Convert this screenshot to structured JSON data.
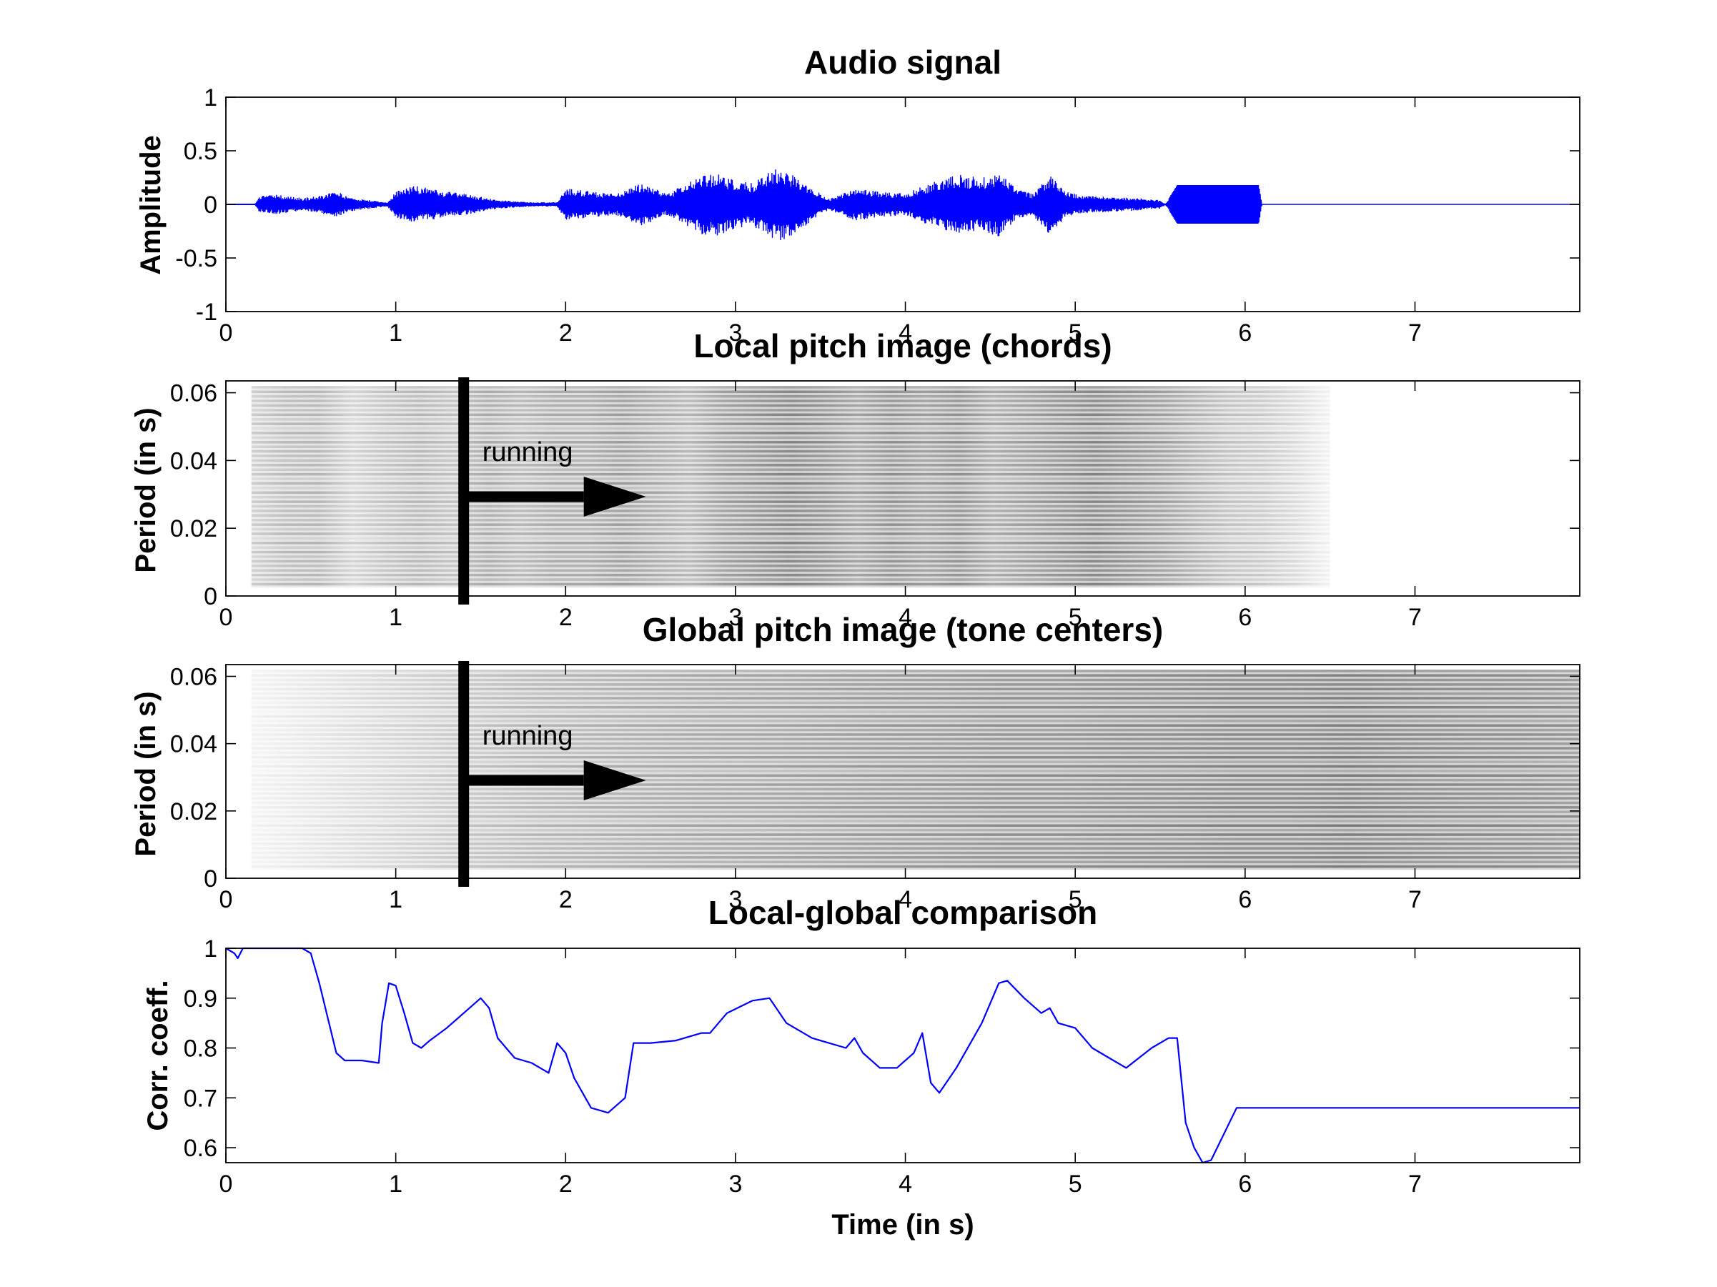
{
  "chart_data": [
    {
      "type": "line",
      "title": "Audio signal",
      "xlabel": "",
      "ylabel": "Amplitude",
      "xlim": [
        0,
        7.97
      ],
      "ylim": [
        -1,
        1
      ],
      "xticks": [
        "0",
        "1",
        "2",
        "3",
        "4",
        "5",
        "6",
        "7"
      ],
      "yticks": [
        "-1",
        "-0.5",
        "0",
        "0.5",
        "1"
      ],
      "color": "#0000ff",
      "series": [
        {
          "x": [
            0,
            0.17,
            0.2,
            0.3,
            0.45,
            0.55,
            0.65,
            0.7,
            0.8,
            0.95,
            1.0,
            1.1,
            1.2,
            1.3,
            1.4,
            1.5,
            1.6,
            1.7,
            1.8,
            1.95,
            2.0,
            2.15,
            2.3,
            2.45,
            2.6,
            2.8,
            2.9,
            3.0,
            3.1,
            3.2,
            3.25,
            3.35,
            3.45,
            3.55,
            3.7,
            3.85,
            4.0,
            4.15,
            4.3,
            4.45,
            4.55,
            4.65,
            4.75,
            4.85,
            4.95,
            5.05,
            5.2,
            5.35,
            5.5,
            5.53,
            5.6,
            6.08,
            6.1,
            7.97
          ],
          "envelope": [
            0,
            0,
            0.08,
            0.09,
            0.06,
            0.08,
            0.13,
            0.08,
            0.05,
            0.02,
            0.12,
            0.18,
            0.15,
            0.12,
            0.1,
            0.07,
            0.04,
            0.03,
            0.02,
            0.02,
            0.15,
            0.12,
            0.1,
            0.2,
            0.1,
            0.28,
            0.3,
            0.22,
            0.2,
            0.3,
            0.35,
            0.28,
            0.15,
            0.05,
            0.15,
            0.12,
            0.1,
            0.2,
            0.28,
            0.25,
            0.3,
            0.15,
            0.1,
            0.28,
            0.12,
            0.08,
            0.07,
            0.06,
            0.04,
            0,
            0.18,
            0.18,
            0,
            0
          ]
        }
      ]
    },
    {
      "type": "heatmap",
      "title": "Local pitch image (chords)",
      "xlabel": "",
      "ylabel": "Period (in s)",
      "xlim": [
        0,
        7.97
      ],
      "ylim": [
        0,
        0.0635
      ],
      "xticks": [
        "0",
        "1",
        "2",
        "3",
        "4",
        "5",
        "6",
        "7"
      ],
      "yticks": [
        "0",
        "0.02",
        "0.04",
        "0.06"
      ],
      "time_extent": [
        0.15,
        6.5
      ],
      "period_extent": [
        0.0025,
        0.062
      ],
      "intensity": [
        0.2,
        0.28,
        0.3,
        0.18,
        0.25,
        0.3,
        0.25,
        0.35,
        0.3,
        0.35,
        0.35,
        0.4,
        0.35,
        0.3,
        0.4,
        0.45,
        0.5,
        0.45,
        0.38,
        0.45,
        0.4,
        0.45,
        0.35,
        0.4,
        0.45,
        0.5,
        0.45,
        0.4,
        0.32,
        0.25,
        0.22,
        0.15,
        0.05
      ],
      "annotation": "running",
      "marker_time": 1.4
    },
    {
      "type": "heatmap",
      "title": "Global pitch image (tone centers)",
      "xlabel": "",
      "ylabel": "Period (in s)",
      "xlim": [
        0,
        7.97
      ],
      "ylim": [
        0,
        0.0635
      ],
      "xticks": [
        "0",
        "1",
        "2",
        "3",
        "4",
        "5",
        "6",
        "7"
      ],
      "yticks": [
        "0",
        "0.02",
        "0.04",
        "0.06"
      ],
      "time_extent": [
        0.15,
        7.97
      ],
      "period_extent": [
        0.0025,
        0.062
      ],
      "intensity": [
        0.05,
        0.1,
        0.15,
        0.2,
        0.25,
        0.3,
        0.32,
        0.35,
        0.37,
        0.38,
        0.4,
        0.42,
        0.43,
        0.45,
        0.45,
        0.47,
        0.48,
        0.5,
        0.5,
        0.52,
        0.5,
        0.48,
        0.47,
        0.45
      ],
      "annotation": "running",
      "marker_time": 1.4
    },
    {
      "type": "line",
      "title": "Local-global comparison",
      "xlabel": "Time (in s)",
      "ylabel": "Corr. coeff.",
      "xlim": [
        0,
        7.97
      ],
      "ylim": [
        0.57,
        1
      ],
      "xticks": [
        "0",
        "1",
        "2",
        "3",
        "4",
        "5",
        "6",
        "7"
      ],
      "yticks": [
        "0.6",
        "0.7",
        "0.8",
        "0.9",
        "1"
      ],
      "color": "#0000ff",
      "series": [
        {
          "x": [
            0,
            0.05,
            0.07,
            0.1,
            0.45,
            0.5,
            0.55,
            0.6,
            0.65,
            0.7,
            0.8,
            0.9,
            0.92,
            0.96,
            1.0,
            1.05,
            1.1,
            1.15,
            1.2,
            1.3,
            1.4,
            1.5,
            1.55,
            1.6,
            1.7,
            1.8,
            1.9,
            1.95,
            2.0,
            2.05,
            2.15,
            2.25,
            2.35,
            2.4,
            2.5,
            2.65,
            2.8,
            2.85,
            2.95,
            3.1,
            3.2,
            3.3,
            3.45,
            3.55,
            3.65,
            3.7,
            3.75,
            3.85,
            3.95,
            4.05,
            4.1,
            4.15,
            4.2,
            4.3,
            4.45,
            4.55,
            4.6,
            4.7,
            4.8,
            4.85,
            4.9,
            5.0,
            5.1,
            5.2,
            5.3,
            5.45,
            5.55,
            5.6,
            5.65,
            5.7,
            5.75,
            5.8,
            5.95,
            7.97
          ],
          "y": [
            1.0,
            0.99,
            0.98,
            1.0,
            1.0,
            0.99,
            0.93,
            0.86,
            0.79,
            0.775,
            0.775,
            0.77,
            0.85,
            0.93,
            0.925,
            0.87,
            0.81,
            0.8,
            0.815,
            0.84,
            0.87,
            0.9,
            0.88,
            0.82,
            0.78,
            0.77,
            0.75,
            0.81,
            0.79,
            0.74,
            0.68,
            0.67,
            0.7,
            0.81,
            0.81,
            0.815,
            0.83,
            0.83,
            0.87,
            0.895,
            0.9,
            0.85,
            0.82,
            0.81,
            0.8,
            0.82,
            0.79,
            0.76,
            0.76,
            0.79,
            0.83,
            0.73,
            0.71,
            0.76,
            0.85,
            0.93,
            0.935,
            0.9,
            0.87,
            0.88,
            0.85,
            0.84,
            0.8,
            0.78,
            0.76,
            0.8,
            0.82,
            0.82,
            0.65,
            0.6,
            0.57,
            0.575,
            0.68,
            0.68
          ]
        }
      ]
    }
  ]
}
